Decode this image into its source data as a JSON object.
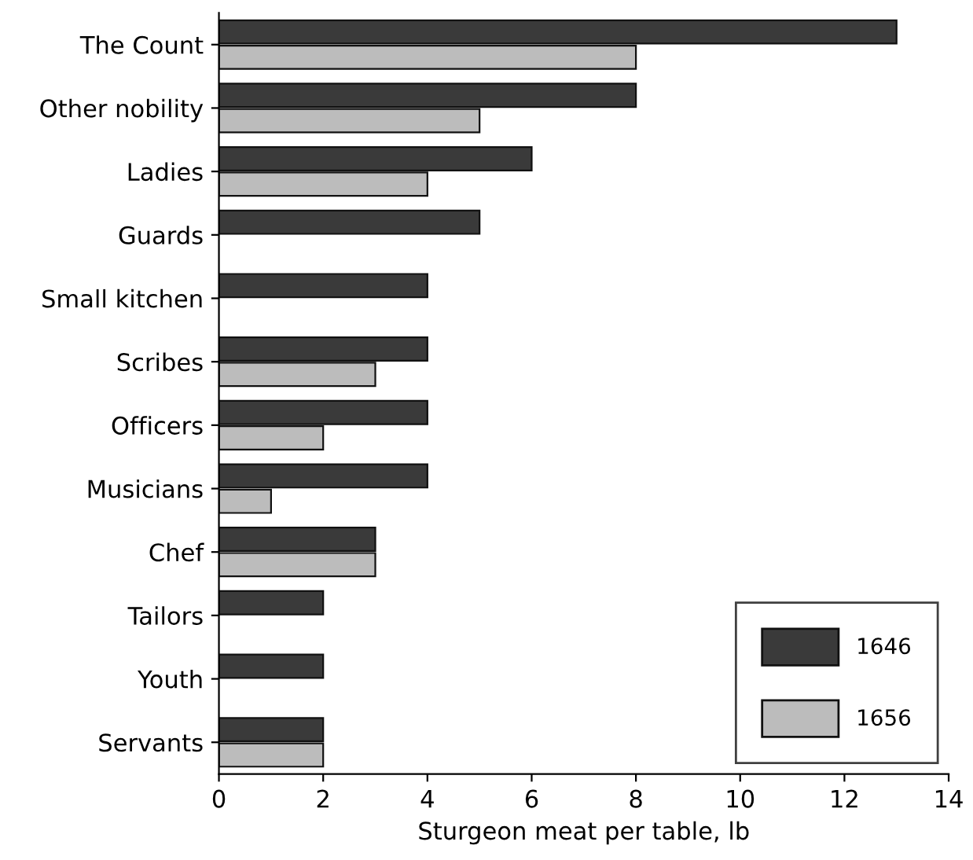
{
  "chart_data": {
    "type": "bar",
    "orientation": "horizontal",
    "xlabel": "Sturgeon meat per table, lb",
    "categories": [
      "The Count",
      "Other nobility",
      "Ladies",
      "Guards",
      "Small kitchen",
      "Scribes",
      "Officers",
      "Musicians",
      "Chef",
      "Tailors",
      "Youth",
      "Servants"
    ],
    "series": [
      {
        "name": "1646",
        "color": "#3a3a3a",
        "values": [
          13,
          8,
          6,
          5,
          4,
          4,
          4,
          4,
          3,
          2,
          2,
          2
        ]
      },
      {
        "name": "1656",
        "color": "#bcbcbc",
        "values": [
          8,
          5,
          4,
          null,
          null,
          3,
          2,
          1,
          3,
          null,
          null,
          2
        ]
      }
    ],
    "xlim": [
      0,
      14
    ],
    "xticks": [
      0,
      2,
      4,
      6,
      8,
      10,
      12,
      14
    ],
    "grid": false,
    "legend": "bottom right"
  }
}
